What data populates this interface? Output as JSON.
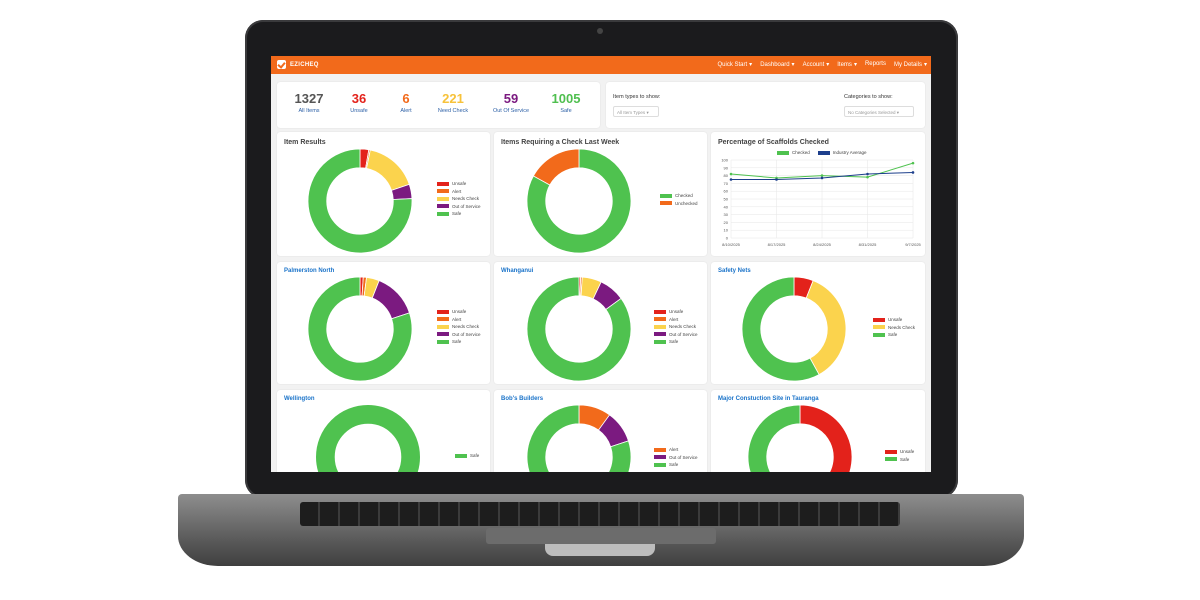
{
  "app": {
    "brand": "EZICHEQ"
  },
  "nav": [
    {
      "name": "quick-start",
      "label": "Quick Start",
      "caret": "▾"
    },
    {
      "name": "dashboard",
      "label": "Dashboard",
      "caret": "▾"
    },
    {
      "name": "account",
      "label": "Account",
      "caret": "▾"
    },
    {
      "name": "items",
      "label": "Items",
      "caret": "▾"
    },
    {
      "name": "reports",
      "label": "Reports",
      "caret": ""
    },
    {
      "name": "my-details",
      "label": "My Details",
      "caret": "▾"
    }
  ],
  "stats": [
    {
      "value": "1327",
      "label": "All Items",
      "color": "#555555"
    },
    {
      "value": "36",
      "label": "Unsafe",
      "color": "#e3221b"
    },
    {
      "value": "6",
      "label": "Alert",
      "color": "#f26a1b"
    },
    {
      "value": "221",
      "label": "Need Check",
      "color": "#f7c23a"
    },
    {
      "value": "59",
      "label": "Out Of Service",
      "color": "#7b1a80"
    },
    {
      "value": "1005",
      "label": "Safe",
      "color": "#4fbf4f"
    }
  ],
  "filters": {
    "item_types_label": "Item types to show:",
    "item_types_value": "All Item Types",
    "categories_label": "Categories to show:",
    "categories_value": "No Categories Selected"
  },
  "colors": {
    "unsafe": "#e3221b",
    "alert": "#f26a1b",
    "needs_check": "#fbd34d",
    "out_of_service": "#7b1a80",
    "safe": "#4fc24f",
    "checked": "#4fc24f",
    "unchecked": "#f26a1b",
    "industry": "#1d3f8c"
  },
  "charts": {
    "item_results": {
      "title": "Item Results",
      "legend": [
        "Unsafe",
        "Alert",
        "Needs Check",
        "Out of Service",
        "Safe"
      ],
      "values": [
        36,
        6,
        221,
        59,
        1005
      ]
    },
    "check_last_week": {
      "title": "Items Requiring a Check Last Week",
      "legend": [
        "Checked",
        "Unchecked"
      ],
      "values": [
        83,
        17
      ]
    },
    "scaffolds": {
      "title": "Percentage of Scaffolds Checked",
      "legend": [
        "Checked",
        "Industry Average"
      ],
      "y_ticks": [
        "100",
        "90",
        "80",
        "70",
        "60",
        "50",
        "40",
        "30",
        "20",
        "10",
        "0"
      ],
      "x_ticks": [
        "8/10/2025",
        "8/17/2025",
        "8/24/2025",
        "8/31/2025",
        "9/7/2025"
      ]
    },
    "palmerston": {
      "title": "Palmerston North",
      "legend": [
        "Unsafe",
        "Alert",
        "Needs Check",
        "Out of Service",
        "Safe"
      ],
      "values": [
        1,
        1,
        4,
        14,
        80
      ]
    },
    "whanganui": {
      "title": "Whanganui",
      "legend": [
        "Unsafe",
        "Alert",
        "Needs Check",
        "Out of Service",
        "Safe"
      ],
      "values": [
        0.5,
        0.5,
        6,
        8,
        85
      ]
    },
    "safety_nets": {
      "title": "Safety Nets",
      "legend": [
        "Unsafe",
        "Needs Check",
        "Safe"
      ],
      "values": [
        6,
        36,
        58
      ]
    },
    "wellington": {
      "title": "Wellington",
      "legend": [
        "Safe"
      ],
      "values": [
        100
      ]
    },
    "bobs_builders": {
      "title": "Bob's Builders",
      "legend": [
        "Alert",
        "Out of Service",
        "Safe"
      ],
      "values": [
        10,
        10,
        80
      ]
    },
    "major_site": {
      "title": "Major Constuction Site in Tauranga",
      "legend": [
        "Unsafe",
        "Safe"
      ],
      "values": [
        36,
        64
      ]
    }
  },
  "chart_data": {
    "type": "line",
    "title": "Percentage of Scaffolds Checked",
    "x": [
      "8/10/2025",
      "8/17/2025",
      "8/24/2025",
      "8/31/2025",
      "9/7/2025"
    ],
    "series": [
      {
        "name": "Checked",
        "values": [
          82,
          77,
          80,
          78,
          96
        ]
      },
      {
        "name": "Industry Average",
        "values": [
          75,
          75,
          77,
          82,
          84
        ]
      }
    ],
    "ylim": [
      0,
      100
    ]
  }
}
